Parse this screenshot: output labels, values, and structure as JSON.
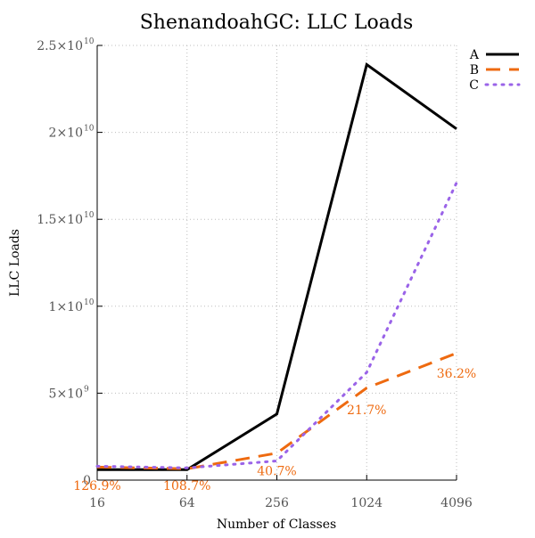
{
  "chart_data": {
    "type": "line",
    "title": "ShenandoahGC: LLC Loads",
    "xlabel": "Number of Classes",
    "ylabel": "LLC Loads",
    "x_scale": "log2",
    "x": [
      16,
      64,
      256,
      1024,
      4096
    ],
    "x_tick_labels": [
      "16",
      "64",
      "256",
      "1024",
      "4096"
    ],
    "ylim": [
      0,
      25000000000
    ],
    "y_ticks": [
      {
        "value": 0,
        "label": "0",
        "exp": ""
      },
      {
        "value": 5000000000,
        "label": "5×10",
        "exp": "9"
      },
      {
        "value": 10000000000,
        "label": "1×10",
        "exp": "10"
      },
      {
        "value": 15000000000,
        "label": "1.5×10",
        "exp": "10"
      },
      {
        "value": 20000000000,
        "label": "2×10",
        "exp": "10"
      },
      {
        "value": 25000000000,
        "label": "2.5×10",
        "exp": "10"
      }
    ],
    "grid": true,
    "legend_position": "top-right",
    "series": [
      {
        "name": "A",
        "color": "#000000",
        "dash": "solid",
        "values": [
          600000000,
          600000000,
          3800000000,
          23900000000,
          20200000000
        ]
      },
      {
        "name": "B",
        "color": "#ee6a10",
        "dash": "dash",
        "values": [
          750000000,
          650000000,
          1550000000,
          5300000000,
          7300000000
        ]
      },
      {
        "name": "C",
        "color": "#9a63e8",
        "dash": "dot",
        "values": [
          800000000,
          700000000,
          1100000000,
          6200000000,
          17100000000
        ]
      }
    ],
    "annotations": [
      {
        "text": "126.9%",
        "x": 16,
        "y": -300000000,
        "color": "#ee6a10"
      },
      {
        "text": "108.7%",
        "x": 64,
        "y": -300000000,
        "color": "#ee6a10"
      },
      {
        "text": "40.7%",
        "x": 256,
        "y": 550000000,
        "color": "#ee6a10"
      },
      {
        "text": "21.7%",
        "x": 1024,
        "y": 4050000000,
        "color": "#ee6a10"
      },
      {
        "text": "36.2%",
        "x": 4096,
        "y": 6150000000,
        "color": "#ee6a10"
      }
    ]
  }
}
